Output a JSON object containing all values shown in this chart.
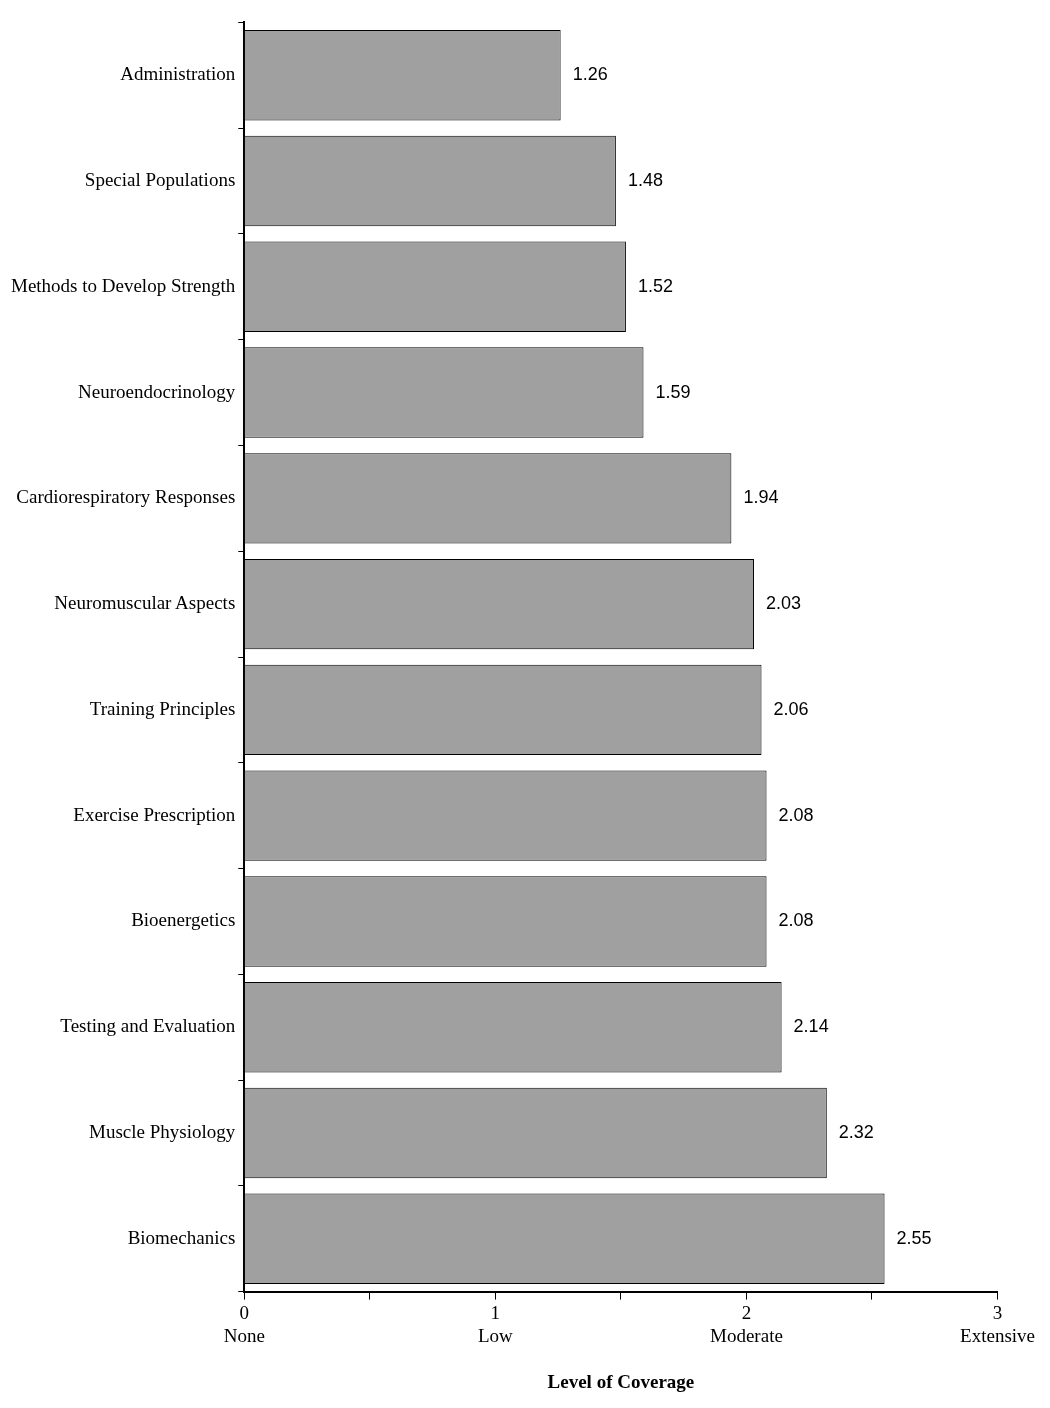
{
  "chart_data": {
    "type": "bar",
    "orientation": "horizontal",
    "categories": [
      "Administration",
      "Special Populations",
      "Methods to Develop Strength",
      "Neuroendocrinology",
      "Cardiorespiratory Responses",
      "Neuromuscular Aspects",
      "Training Principles",
      "Exercise Prescription",
      "Bioenergetics",
      "Testing and Evaluation",
      "Muscle Physiology",
      "Biomechanics"
    ],
    "values": [
      1.26,
      1.48,
      1.52,
      1.59,
      1.94,
      2.03,
      2.06,
      2.08,
      2.08,
      2.14,
      2.32,
      2.55
    ],
    "color": "#a0a0a0",
    "xlabel": "Level of Coverage",
    "xlim": [
      0,
      3
    ],
    "xticks": [
      {
        "value": 0,
        "label": "0\nNone"
      },
      {
        "value": 0.5,
        "label": null
      },
      {
        "value": 1,
        "label": "1\nLow"
      },
      {
        "value": 1.5,
        "label": null
      },
      {
        "value": 2,
        "label": "2\nModerate"
      },
      {
        "value": 2.5,
        "label": null
      },
      {
        "value": 3,
        "label": "3\nExtensive"
      }
    ],
    "data_labels": true,
    "grid": false,
    "legend": false
  }
}
